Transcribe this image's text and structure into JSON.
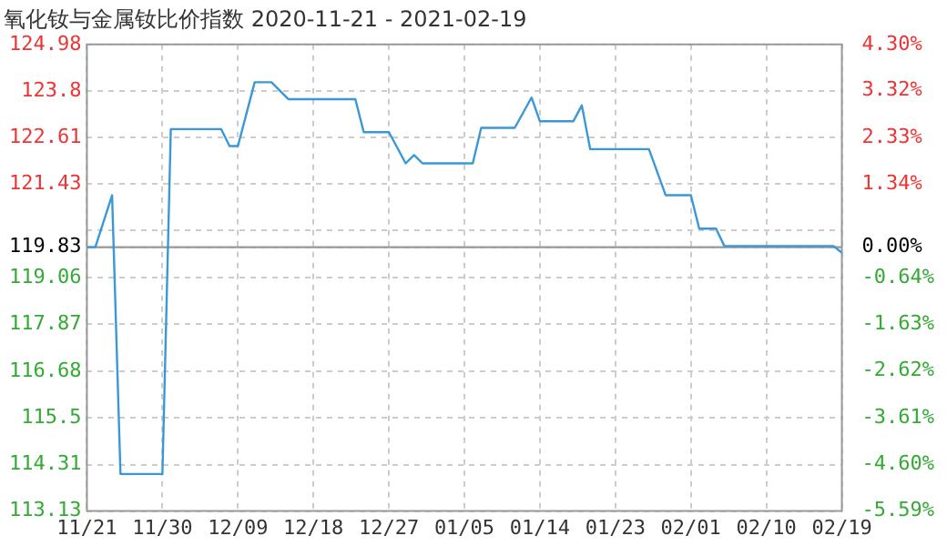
{
  "chart_data": {
    "type": "line",
    "title": "氧化钕与金属钕比价指数 2020-11-21 - 2021-02-19",
    "x": [
      "2020-11-21",
      "2020-11-22",
      "2020-11-24",
      "2020-11-25",
      "2020-11-30",
      "2020-12-01",
      "2020-12-07",
      "2020-12-08",
      "2020-12-09",
      "2020-12-11",
      "2020-12-13",
      "2020-12-15",
      "2020-12-23",
      "2020-12-24",
      "2020-12-27",
      "2020-12-29",
      "2020-12-30",
      "2020-12-31",
      "2021-01-06",
      "2021-01-07",
      "2021-01-11",
      "2021-01-13",
      "2021-01-14",
      "2021-01-18",
      "2021-01-19",
      "2021-01-20",
      "2021-01-27",
      "2021-01-29",
      "2021-02-01",
      "2021-02-02",
      "2021-02-04",
      "2021-02-05",
      "2021-02-18",
      "2021-02-19"
    ],
    "series": [
      {
        "color": "#3a98d8",
        "values": [
          119.83,
          119.83,
          121.15,
          114.07,
          114.07,
          122.83,
          122.83,
          122.4,
          122.4,
          124.02,
          124.02,
          123.59,
          123.59,
          122.75,
          122.75,
          121.96,
          122.17,
          121.96,
          121.96,
          122.86,
          122.86,
          123.63,
          123.03,
          123.03,
          123.43,
          122.32,
          122.32,
          121.15,
          121.15,
          120.3,
          120.3,
          119.86,
          119.86,
          119.69
        ]
      }
    ],
    "xlim": [
      "2020-11-21",
      "2021-02-19"
    ],
    "xticks": [
      {
        "value": "2020-11-21",
        "label": "11/21"
      },
      {
        "value": "2020-11-30",
        "label": "11/30"
      },
      {
        "value": "2020-12-09",
        "label": "12/09"
      },
      {
        "value": "2020-12-18",
        "label": "12/18"
      },
      {
        "value": "2020-12-27",
        "label": "12/27"
      },
      {
        "value": "2021-01-05",
        "label": "01/05"
      },
      {
        "value": "2021-01-14",
        "label": "01/14"
      },
      {
        "value": "2021-01-23",
        "label": "01/23"
      },
      {
        "value": "2021-02-01",
        "label": "02/01"
      },
      {
        "value": "2021-02-10",
        "label": "02/10"
      },
      {
        "value": "2021-02-19",
        "label": "02/19"
      }
    ],
    "ylim": [
      113.13,
      124.98
    ],
    "yticks": [
      113.13,
      114.31,
      115.5,
      116.68,
      117.87,
      119.06,
      119.83,
      {
        "value": 120.25,
        "label": null
      },
      121.43,
      122.61,
      123.8,
      124.98
    ],
    "y2lim": [
      -5.59,
      4.3
    ],
    "y2ticks": [
      {
        "value": -5.59,
        "label": "-5.59%"
      },
      {
        "value": -4.6,
        "label": "-4.60%"
      },
      {
        "value": -3.61,
        "label": "-3.61%"
      },
      {
        "value": -2.62,
        "label": "-2.62%"
      },
      {
        "value": -1.63,
        "label": "-1.63%"
      },
      {
        "value": -0.64,
        "label": "-0.64%"
      },
      {
        "value": 0,
        "label": "0.00%"
      },
      {
        "value": 0.35,
        "label": null
      },
      {
        "value": 1.34,
        "label": "1.34%"
      },
      {
        "value": 2.33,
        "label": "2.33%"
      },
      {
        "value": 3.32,
        "label": "3.32%"
      },
      {
        "value": 4.3,
        "label": "4.30%"
      }
    ],
    "ref_lines": [
      {
        "axis": "y",
        "value": 119.83,
        "color": "#999999"
      }
    ],
    "grid": true,
    "legend": false,
    "marker": "none",
    "line_style": "solid"
  }
}
